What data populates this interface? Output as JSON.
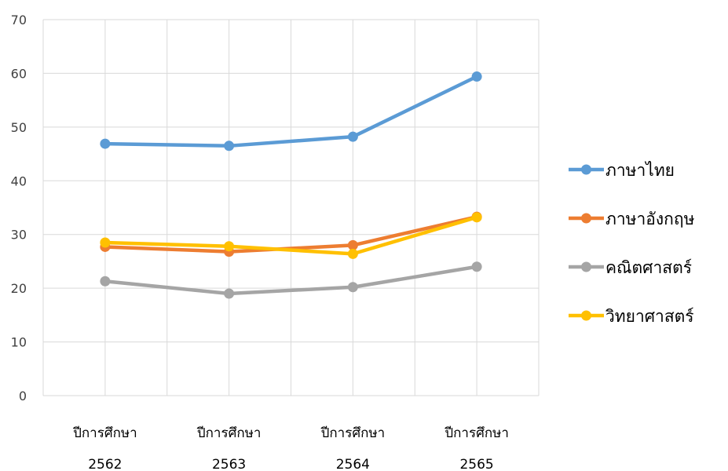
{
  "chart_data": {
    "type": "line",
    "title": "",
    "xlabel": "",
    "ylabel": "",
    "categories": [
      {
        "line1": "ปีการศึกษา",
        "line2": "2562"
      },
      {
        "line1": "ปีการศึกษา",
        "line2": "2563"
      },
      {
        "line1": "ปีการศึกษา",
        "line2": "2564"
      },
      {
        "line1": "ปีการศึกษา",
        "line2": "2565"
      }
    ],
    "ylim": [
      0,
      70
    ],
    "yticks": [
      0,
      10,
      20,
      30,
      40,
      50,
      60,
      70
    ],
    "grid": true,
    "legend_position": "right",
    "series": [
      {
        "name": "ภาษาไทย",
        "color": "#5B9BD5",
        "values": [
          46.9,
          46.5,
          48.2,
          59.4
        ]
      },
      {
        "name": "ภาษาอังกฤษ",
        "color": "#ED7D31",
        "values": [
          27.7,
          26.8,
          28.0,
          33.3
        ]
      },
      {
        "name": "คณิตศาสตร์",
        "color": "#A5A5A5",
        "values": [
          21.3,
          19.0,
          20.2,
          24.0
        ]
      },
      {
        "name": "วิทยาศาสตร์",
        "color": "#FFC000",
        "values": [
          28.5,
          27.8,
          26.4,
          33.2
        ]
      }
    ]
  }
}
